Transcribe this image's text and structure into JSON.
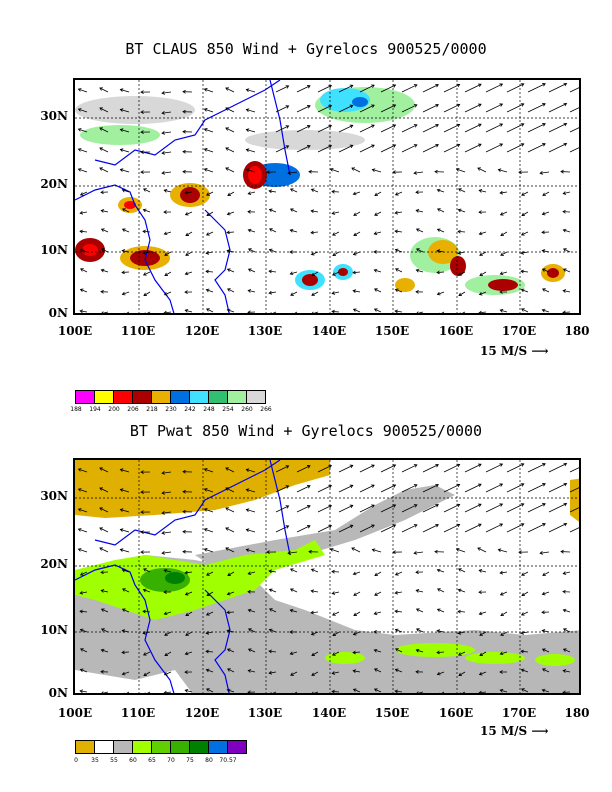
{
  "panels": [
    {
      "id": "top",
      "title": "BT CLAUS 850 Wind + Gyrelocs 900525/0000",
      "y_ticks": [
        "30N",
        "20N",
        "10N",
        "0N"
      ],
      "x_ticks": [
        "100E",
        "110E",
        "120E",
        "130E",
        "140E",
        "150E",
        "160E",
        "170E",
        "180"
      ],
      "ref_vector": "15 M/S",
      "legend_colors": [
        "#ff00ff",
        "#ffff00",
        "#ff0000",
        "#aa0000",
        "#e8b000",
        "#0070e0",
        "#40e0ff",
        "#30c070",
        "#a0f0a0",
        "#d8d8d8"
      ],
      "legend_values": [
        "188",
        "194",
        "200",
        "206",
        "218",
        "230",
        "242",
        "248",
        "254",
        "260",
        "266"
      ]
    },
    {
      "id": "bottom",
      "title": "BT Pwat 850 Wind + Gyrelocs 900525/0000",
      "y_ticks": [
        "30N",
        "20N",
        "10N",
        "0N"
      ],
      "x_ticks": [
        "100E",
        "110E",
        "120E",
        "130E",
        "140E",
        "150E",
        "160E",
        "170E",
        "180"
      ],
      "ref_vector": "15 M/S",
      "legend_colors": [
        "#e0b000",
        "#ffffff",
        "#b8b8b8",
        "#a0ff00",
        "#60d000",
        "#38b000",
        "#008000",
        "#0070e0",
        "#8000c0"
      ],
      "legend_values": [
        "0",
        "35",
        "55",
        "60",
        "65",
        "70",
        "75",
        "80",
        "70.57"
      ]
    }
  ]
}
